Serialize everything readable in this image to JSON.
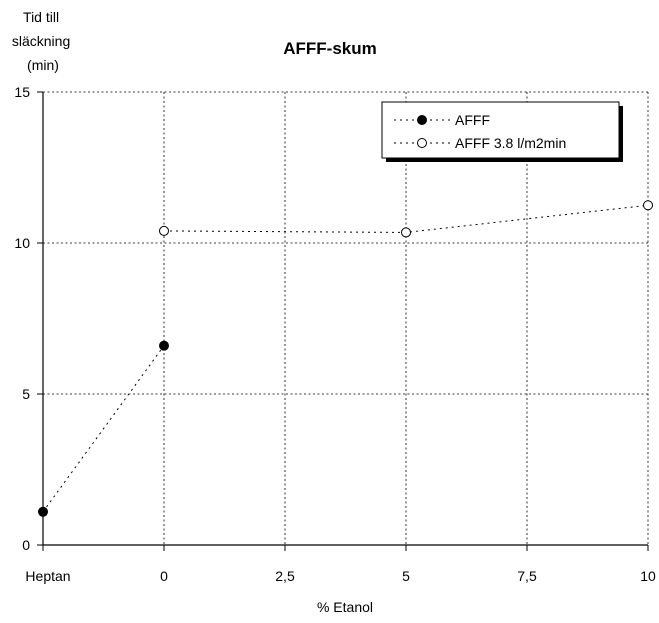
{
  "chart_data": {
    "type": "line",
    "title": "AFFF-skum",
    "ylabel_lines": [
      "Tid till",
      "släckning",
      "(min)"
    ],
    "xlabel": "% Etanol",
    "ylim": [
      0,
      15
    ],
    "y_ticks": [
      0,
      5,
      10,
      15
    ],
    "x_ticks": [
      {
        "value": -2.5,
        "label": "Heptan"
      },
      {
        "value": 0,
        "label": "0"
      },
      {
        "value": 2.5,
        "label": "2,5"
      },
      {
        "value": 5,
        "label": "5"
      },
      {
        "value": 7.5,
        "label": "7,5"
      },
      {
        "value": 10,
        "label": "10"
      }
    ],
    "xlim": [
      -2.5,
      10
    ],
    "grid": true,
    "legend_position": "top-right",
    "series": [
      {
        "name": "AFFF",
        "marker": "filled-circle",
        "x": [
          -2.5,
          0
        ],
        "y": [
          1.1,
          6.6
        ]
      },
      {
        "name": "AFFF 3.8 l/m2min",
        "marker": "open-circle",
        "x": [
          0,
          5,
          10
        ],
        "y": [
          10.4,
          10.35,
          11.25
        ]
      }
    ]
  }
}
